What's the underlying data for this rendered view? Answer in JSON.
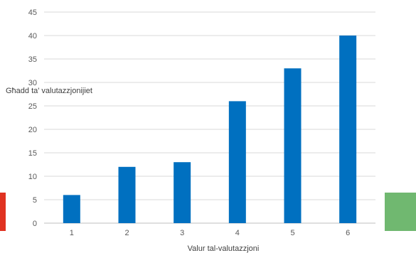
{
  "chart_data": {
    "type": "bar",
    "categories": [
      "1",
      "2",
      "3",
      "4",
      "5",
      "6"
    ],
    "values": [
      6,
      12,
      13,
      26,
      33,
      40
    ],
    "xlabel": "Valur tal-valutazzjoni",
    "ylabel": "Għadd ta' valutazzjonijiet",
    "ylim": [
      0,
      45
    ],
    "yticks": [
      0,
      5,
      10,
      15,
      20,
      25,
      30,
      35,
      40,
      45
    ],
    "grid": true,
    "bar_color": "#0070C0"
  },
  "decor": {
    "left_block_color": "#E03221",
    "right_block_color": "#70B870"
  }
}
